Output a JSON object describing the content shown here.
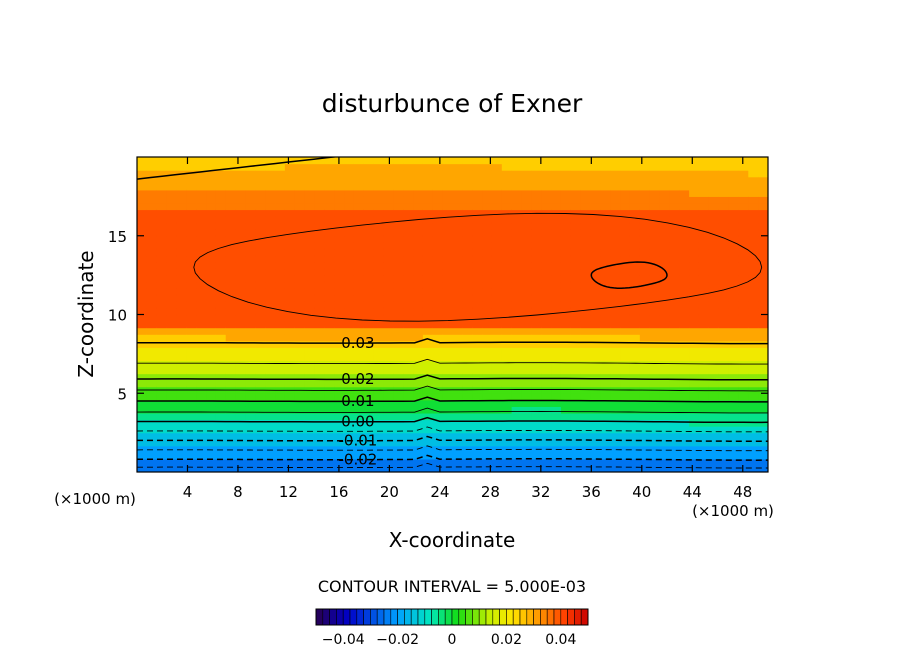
{
  "chart_data": {
    "type": "heatmap",
    "title": "disturbunce of Exner",
    "xlabel": "X-coordinate",
    "ylabel": "Z-coordinate",
    "x_unit_label": "(×1000 m)",
    "xlim": [
      0,
      50
    ],
    "ylim": [
      0,
      20
    ],
    "x_ticks": [
      4,
      8,
      12,
      16,
      20,
      24,
      28,
      32,
      36,
      40,
      44,
      48
    ],
    "y_ticks": [
      5,
      10,
      15
    ],
    "grid": false,
    "contour_interval_label": "CONTOUR INTERVAL = 5.000E-03",
    "contour_labels": [
      {
        "text": "0.03",
        "x": 17.5,
        "z": 8.2
      },
      {
        "text": "0.02",
        "x": 17.5,
        "z": 5.9
      },
      {
        "text": "0.01",
        "x": 17.5,
        "z": 4.5
      },
      {
        "text": "0.00",
        "x": 17.5,
        "z": 3.2
      },
      {
        "text": "-0.01",
        "x": 17.5,
        "z": 2.0
      },
      {
        "text": "-0.02",
        "x": 17.5,
        "z": 0.8
      }
    ],
    "contour_levels_zero_crossing_z": {
      "-0.025": 0.3,
      "-0.02": 0.8,
      "-0.015": 1.4,
      "-0.01": 2.0,
      "-0.005": 2.6,
      "0.00": 3.2,
      "0.005": 3.8,
      "0.01": 4.5,
      "0.015": 5.2,
      "0.02": 5.9,
      "0.025": 6.9,
      "0.03": 8.2,
      "0.035": 11.5,
      "0.04": 12.5
    },
    "colorbar": {
      "range": [
        -0.05,
        0.05
      ],
      "ticks": [
        "-0.04",
        "-0.02",
        "0",
        "0.02",
        "0.04"
      ]
    }
  }
}
